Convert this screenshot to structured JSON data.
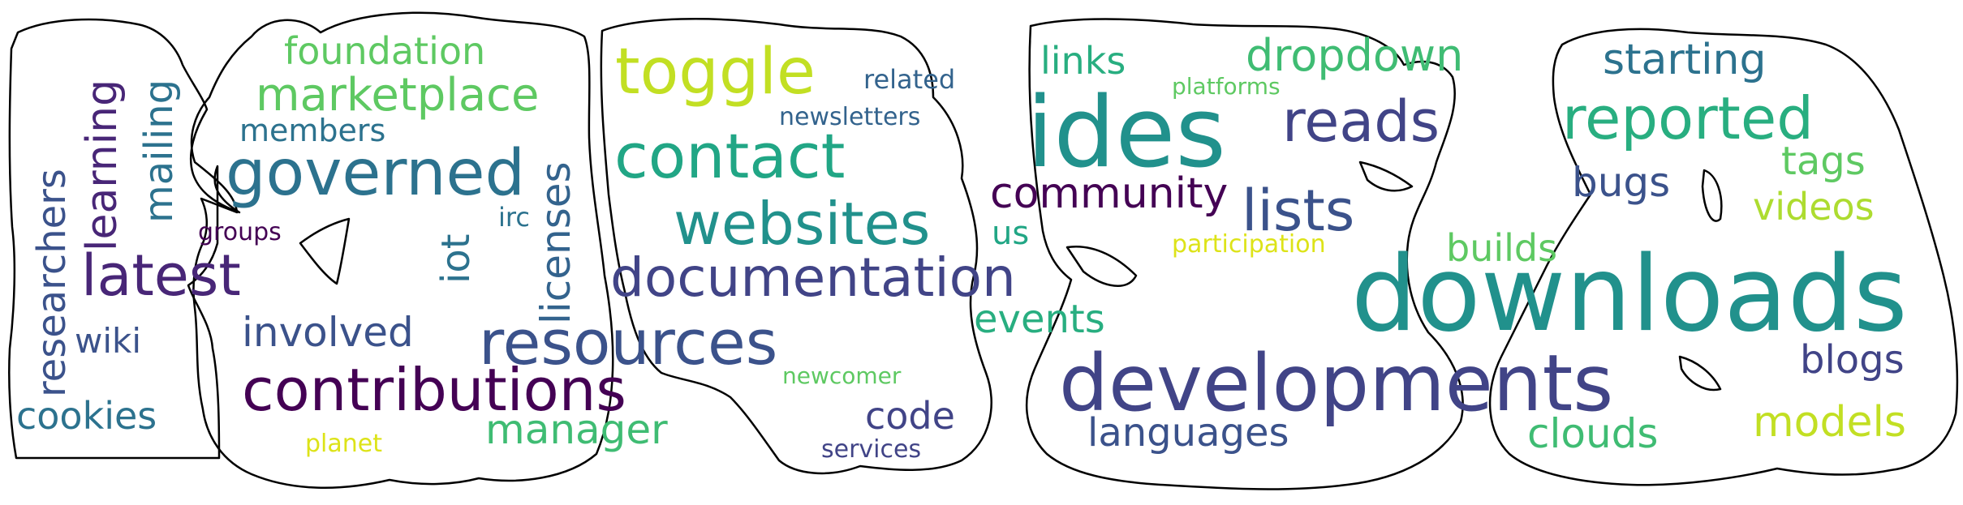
{
  "palette": {
    "dark_purple": "#440154",
    "purple": "#482677",
    "indigo": "#414487",
    "slate_blue": "#3b528b",
    "steel_blue": "#33638d",
    "blue_teal": "#2c728e",
    "teal": "#21918c",
    "sea_green": "#28ae80",
    "green": "#3fbc73",
    "light_green": "#5ec962",
    "lime": "#addc30",
    "yellow_green": "#c2df23",
    "yellow": "#dde318",
    "outline": "#000000",
    "background": "#ffffff"
  },
  "words": [
    {
      "text": "downloads",
      "color": "#21918c"
    },
    {
      "text": "developments",
      "color": "#414487"
    },
    {
      "text": "ides",
      "color": "#21918c"
    },
    {
      "text": "contributions",
      "color": "#440154"
    },
    {
      "text": "resources",
      "color": "#3b528b"
    },
    {
      "text": "contact",
      "color": "#21a685"
    },
    {
      "text": "websites",
      "color": "#21918c"
    },
    {
      "text": "documentation",
      "color": "#414487"
    },
    {
      "text": "toggle",
      "color": "#c2df23"
    },
    {
      "text": "governed",
      "color": "#2c728e"
    },
    {
      "text": "latest",
      "color": "#482677"
    },
    {
      "text": "lists",
      "color": "#3b528b"
    },
    {
      "text": "reads",
      "color": "#414487"
    },
    {
      "text": "reported",
      "color": "#28ae80"
    },
    {
      "text": "marketplace",
      "color": "#5ec962"
    },
    {
      "text": "community",
      "color": "#440154"
    },
    {
      "text": "involved",
      "color": "#3b528b"
    },
    {
      "text": "dropdown",
      "color": "#3fbc73"
    },
    {
      "text": "starting",
      "color": "#2c728e"
    },
    {
      "text": "manager",
      "color": "#3fbc73"
    },
    {
      "text": "languages",
      "color": "#3b528b"
    },
    {
      "text": "foundation",
      "color": "#5ec962"
    },
    {
      "text": "clouds",
      "color": "#3fbc73"
    },
    {
      "text": "cookies",
      "color": "#2c728e"
    },
    {
      "text": "models",
      "color": "#c2df23"
    },
    {
      "text": "events",
      "color": "#28ae80"
    },
    {
      "text": "links",
      "color": "#28ae80"
    },
    {
      "text": "builds",
      "color": "#5ec962"
    },
    {
      "text": "bugs",
      "color": "#3b528b"
    },
    {
      "text": "blogs",
      "color": "#414487"
    },
    {
      "text": "videos",
      "color": "#addc30"
    },
    {
      "text": "tags",
      "color": "#5ec962"
    },
    {
      "text": "code",
      "color": "#414487"
    },
    {
      "text": "members",
      "color": "#2c728e"
    },
    {
      "text": "wiki",
      "color": "#3b528b"
    },
    {
      "text": "related",
      "color": "#33638d"
    },
    {
      "text": "newsletters",
      "color": "#33638d"
    },
    {
      "text": "services",
      "color": "#414487"
    },
    {
      "text": "us",
      "color": "#21a685"
    },
    {
      "text": "participation",
      "color": "#dde318"
    },
    {
      "text": "platforms",
      "color": "#5ec962"
    },
    {
      "text": "newcomer",
      "color": "#5ec962"
    },
    {
      "text": "planet",
      "color": "#dde318"
    },
    {
      "text": "groups",
      "color": "#440154"
    },
    {
      "text": "irc",
      "color": "#2c728e"
    },
    {
      "text": "researchers",
      "color": "#3b528b"
    },
    {
      "text": "learning",
      "color": "#482677"
    },
    {
      "text": "mailing",
      "color": "#2c728e"
    },
    {
      "text": "iot",
      "color": "#2c728e"
    },
    {
      "text": "licenses",
      "color": "#33638d"
    }
  ]
}
